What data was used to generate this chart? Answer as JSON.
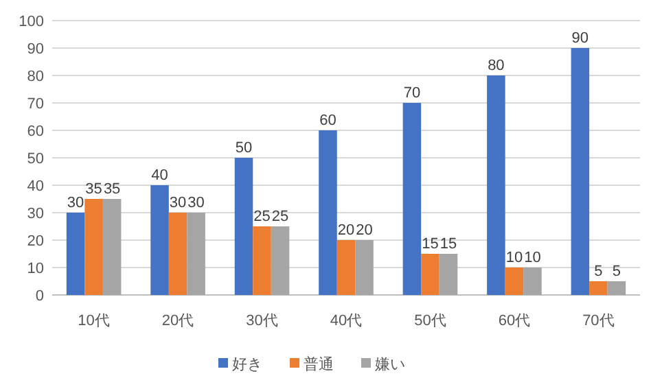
{
  "chart_data": {
    "type": "bar",
    "categories": [
      "10代",
      "20代",
      "30代",
      "40代",
      "50代",
      "60代",
      "70代"
    ],
    "series": [
      {
        "name": "好き",
        "color": "#4472c4",
        "values": [
          30,
          40,
          50,
          60,
          70,
          80,
          90
        ]
      },
      {
        "name": "普通",
        "color": "#ed7d31",
        "values": [
          35,
          30,
          25,
          20,
          15,
          10,
          5
        ]
      },
      {
        "name": "嫌い",
        "color": "#a5a5a5",
        "values": [
          35,
          30,
          25,
          20,
          15,
          10,
          5
        ]
      }
    ],
    "ylim": [
      0,
      100
    ],
    "yticks": [
      0,
      10,
      20,
      30,
      40,
      50,
      60,
      70,
      80,
      90,
      100
    ],
    "grid": "y",
    "data_labels": true,
    "legend": "bottom"
  }
}
